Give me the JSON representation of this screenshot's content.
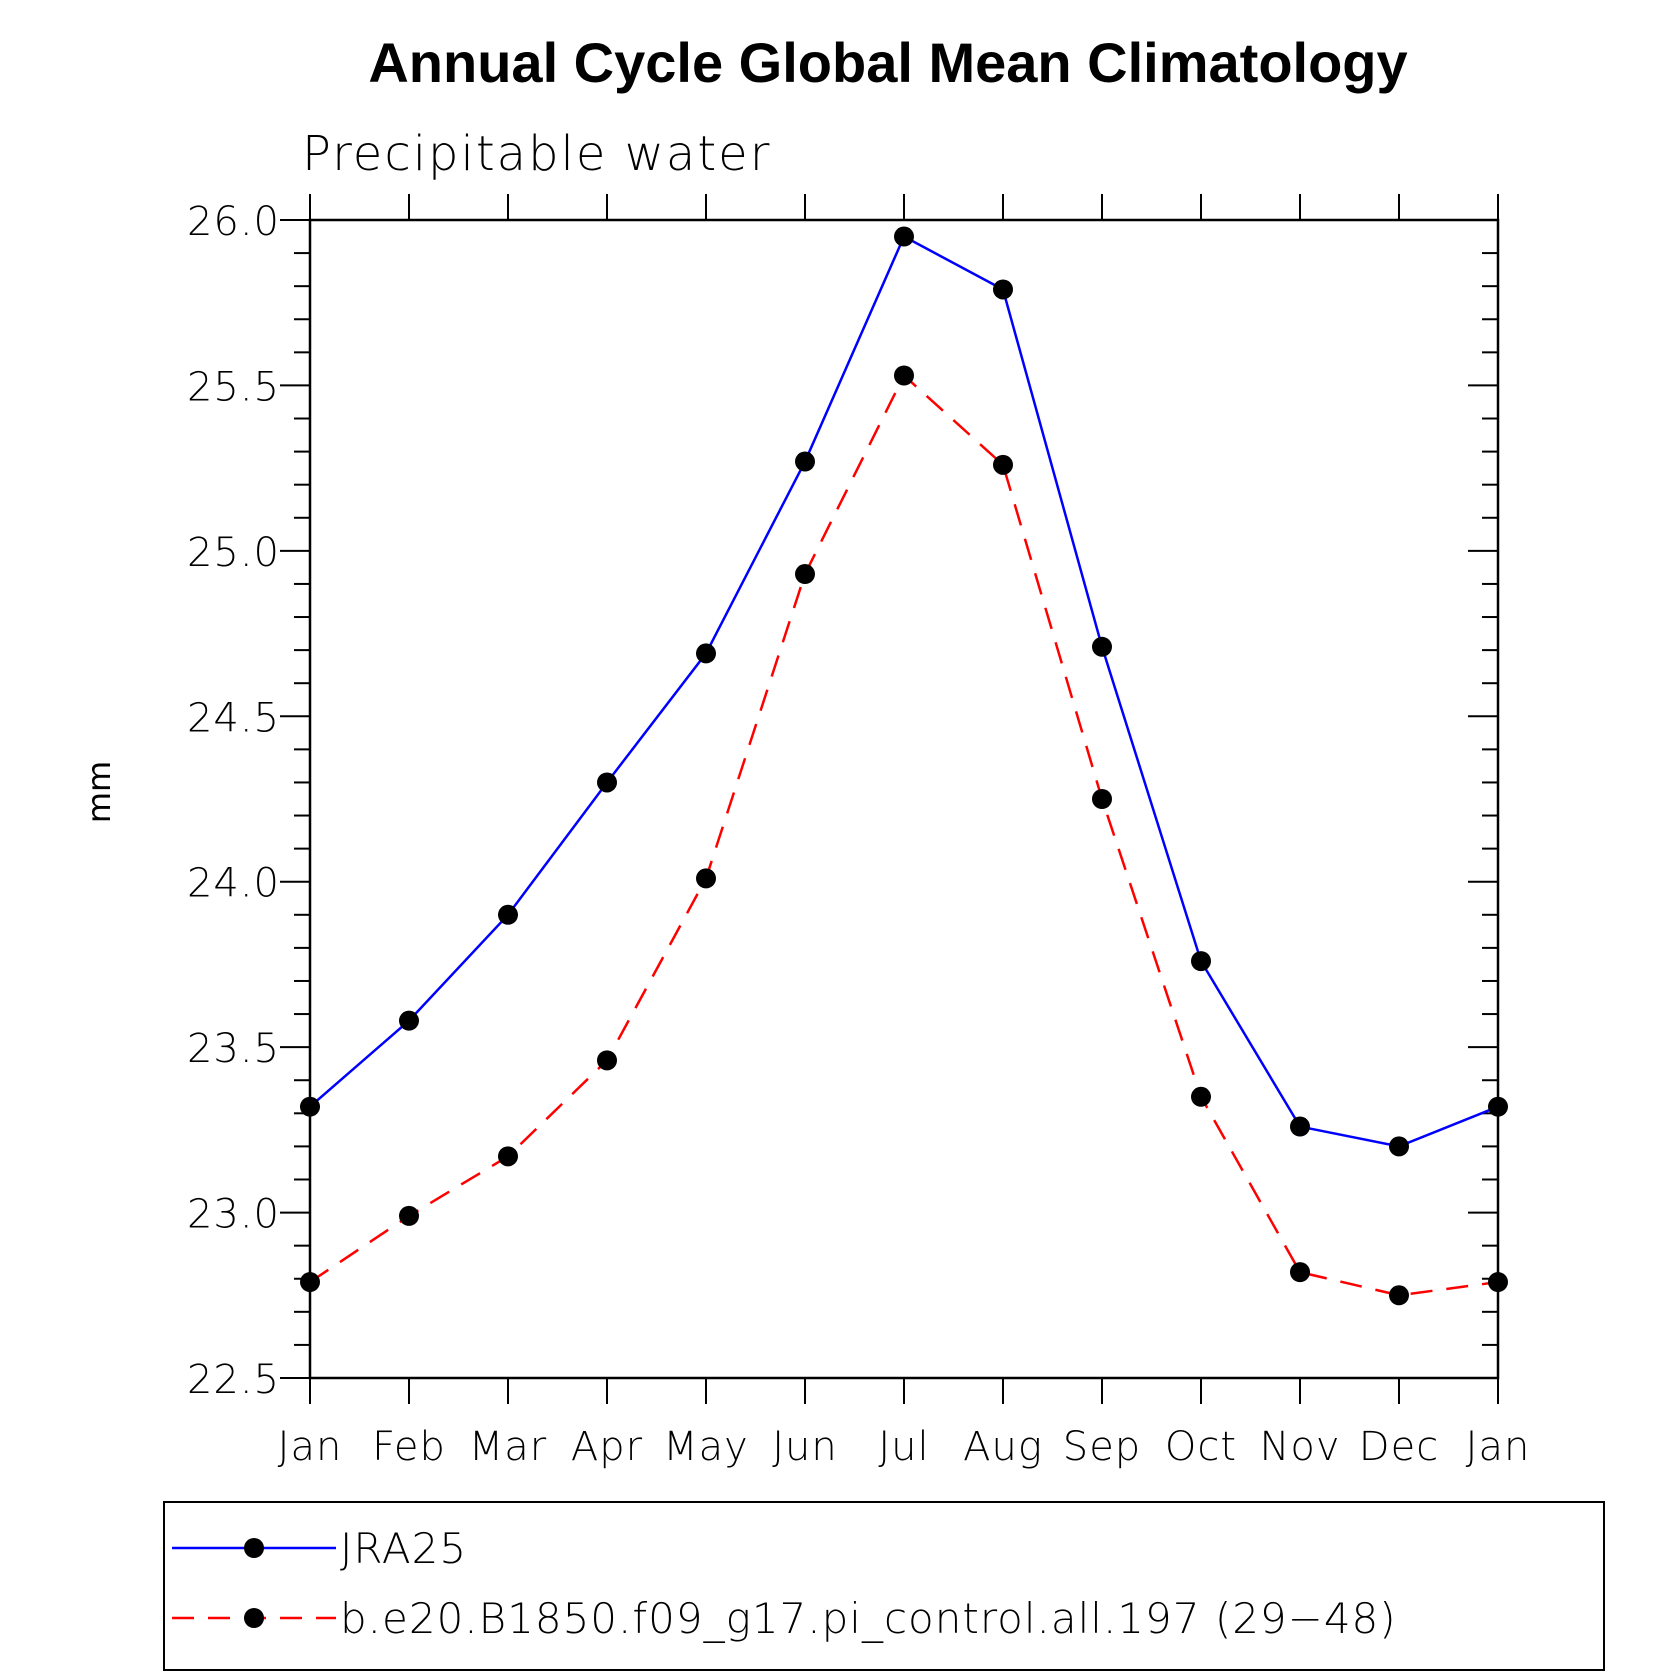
{
  "chart_data": {
    "type": "line",
    "title": "Annual Cycle Global Mean Climatology",
    "subtitle": "Precipitable water",
    "xlabel": "",
    "ylabel": "mm",
    "categories": [
      "Jan",
      "Feb",
      "Mar",
      "Apr",
      "May",
      "Jun",
      "Jul",
      "Aug",
      "Sep",
      "Oct",
      "Nov",
      "Dec",
      "Jan"
    ],
    "ylim": [
      22.5,
      26.0
    ],
    "yticks": [
      "22.5",
      "23.0",
      "23.5",
      "24.0",
      "24.5",
      "25.0",
      "25.5",
      "26.0"
    ],
    "grid": false,
    "legend_position": "bottom",
    "series": [
      {
        "name": "JRA25",
        "color": "#0000ff",
        "dash": "solid",
        "marker": "filled-circle",
        "values": [
          23.32,
          23.58,
          23.9,
          24.3,
          24.69,
          25.27,
          25.95,
          25.79,
          24.71,
          23.76,
          23.26,
          23.2,
          23.32
        ]
      },
      {
        "name": "b.e20.B1850.f09_g17.pi_control.all.197 (29−48)",
        "color": "#ff0000",
        "dash": "dashed",
        "marker": "filled-circle",
        "values": [
          22.79,
          22.99,
          23.17,
          23.46,
          24.01,
          24.93,
          25.53,
          25.26,
          24.25,
          23.35,
          22.82,
          22.75,
          22.79
        ]
      }
    ]
  }
}
